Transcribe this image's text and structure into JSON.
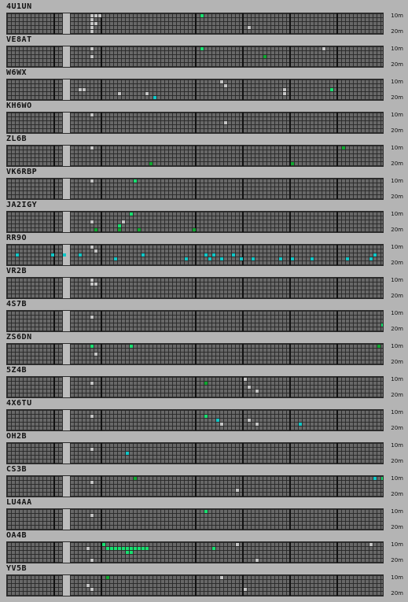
{
  "band_top_label": "10m",
  "band_bottom_label": "20m",
  "colors": {
    "teal": "#10c8c8",
    "green": "#10a830",
    "lime": "#18e070",
    "gray": "#c6c6c6"
  },
  "stations": [
    {
      "call": "4U1UN",
      "cells": [
        [
          21,
          0,
          "gray"
        ],
        [
          22,
          0,
          "gray"
        ],
        [
          23,
          0,
          "gray"
        ],
        [
          21,
          1,
          "gray"
        ],
        [
          21,
          2,
          "gray"
        ],
        [
          22,
          2,
          "gray"
        ],
        [
          21,
          3,
          "gray"
        ],
        [
          21,
          4,
          "gray"
        ],
        [
          49,
          0,
          "lime"
        ],
        [
          61,
          3,
          "gray"
        ]
      ]
    },
    {
      "call": "VE8AT",
      "cells": [
        [
          49,
          0,
          "lime"
        ],
        [
          65,
          2,
          "green"
        ],
        [
          80,
          0,
          "gray"
        ],
        [
          21,
          0,
          "gray"
        ],
        [
          21,
          2,
          "gray"
        ]
      ]
    },
    {
      "call": "W6WX",
      "cells": [
        [
          18,
          2,
          "gray"
        ],
        [
          19,
          2,
          "gray"
        ],
        [
          28,
          3,
          "gray"
        ],
        [
          35,
          3,
          "gray"
        ],
        [
          37,
          4,
          "teal"
        ],
        [
          39,
          5,
          "lime"
        ],
        [
          40,
          5,
          "teal"
        ],
        [
          54,
          0,
          "gray"
        ],
        [
          55,
          1,
          "gray"
        ],
        [
          70,
          2,
          "gray"
        ],
        [
          70,
          3,
          "gray"
        ],
        [
          82,
          2,
          "lime"
        ]
      ]
    },
    {
      "call": "KH6WO",
      "cells": [
        [
          21,
          0,
          "gray"
        ],
        [
          55,
          2,
          "gray"
        ]
      ]
    },
    {
      "call": "ZL6B",
      "cells": [
        [
          21,
          0,
          "gray"
        ],
        [
          36,
          4,
          "green"
        ],
        [
          72,
          4,
          "green"
        ],
        [
          85,
          0,
          "green"
        ]
      ]
    },
    {
      "call": "VK6RBP",
      "cells": [
        [
          32,
          0,
          "lime"
        ],
        [
          21,
          0,
          "gray"
        ]
      ]
    },
    {
      "call": "JA2IGY",
      "cells": [
        [
          31,
          0,
          "lime"
        ],
        [
          28,
          3,
          "lime"
        ],
        [
          28,
          4,
          "green"
        ],
        [
          33,
          4,
          "green"
        ],
        [
          47,
          4,
          "green"
        ],
        [
          29,
          2,
          "gray"
        ],
        [
          21,
          2,
          "gray"
        ],
        [
          22,
          4,
          "green"
        ]
      ]
    },
    {
      "call": "RR9O",
      "cells": [
        [
          21,
          0,
          "gray"
        ],
        [
          2,
          2,
          "teal"
        ],
        [
          11,
          2,
          "teal"
        ],
        [
          14,
          2,
          "teal"
        ],
        [
          18,
          2,
          "teal"
        ],
        [
          22,
          1,
          "gray"
        ],
        [
          27,
          3,
          "teal"
        ],
        [
          34,
          2,
          "teal"
        ],
        [
          45,
          3,
          "teal"
        ],
        [
          50,
          2,
          "teal"
        ],
        [
          51,
          3,
          "teal"
        ],
        [
          52,
          2,
          "teal"
        ],
        [
          54,
          3,
          "teal"
        ],
        [
          57,
          2,
          "teal"
        ],
        [
          59,
          3,
          "teal"
        ],
        [
          62,
          3,
          "teal"
        ],
        [
          69,
          3,
          "teal"
        ],
        [
          72,
          3,
          "teal"
        ],
        [
          77,
          3,
          "teal"
        ],
        [
          86,
          3,
          "teal"
        ],
        [
          92,
          3,
          "teal"
        ],
        [
          93,
          2,
          "teal"
        ]
      ]
    },
    {
      "call": "VR2B",
      "cells": [
        [
          21,
          1,
          "gray"
        ],
        [
          22,
          1,
          "gray"
        ],
        [
          21,
          0,
          "gray"
        ]
      ]
    },
    {
      "call": "4S7B",
      "cells": [
        [
          21,
          1,
          "gray"
        ],
        [
          95,
          3,
          "lime"
        ]
      ]
    },
    {
      "call": "ZS6DN",
      "cells": [
        [
          21,
          0,
          "lime"
        ],
        [
          31,
          0,
          "lime"
        ],
        [
          22,
          2,
          "gray"
        ],
        [
          94,
          0,
          "green"
        ]
      ]
    },
    {
      "call": "5Z4B",
      "cells": [
        [
          50,
          1,
          "green"
        ],
        [
          60,
          0,
          "gray"
        ],
        [
          61,
          2,
          "gray"
        ],
        [
          63,
          3,
          "gray"
        ],
        [
          21,
          1,
          "gray"
        ]
      ]
    },
    {
      "call": "4X6TU",
      "cells": [
        [
          50,
          1,
          "lime"
        ],
        [
          53,
          2,
          "teal"
        ],
        [
          54,
          3,
          "gray"
        ],
        [
          61,
          2,
          "gray"
        ],
        [
          63,
          3,
          "gray"
        ],
        [
          74,
          3,
          "teal"
        ],
        [
          21,
          1,
          "gray"
        ]
      ]
    },
    {
      "call": "OH2B",
      "cells": [
        [
          30,
          2,
          "teal"
        ],
        [
          21,
          1,
          "gray"
        ]
      ]
    },
    {
      "call": "CS3B",
      "cells": [
        [
          32,
          0,
          "green"
        ],
        [
          93,
          0,
          "teal"
        ],
        [
          95,
          0,
          "lime"
        ],
        [
          58,
          3,
          "gray"
        ],
        [
          21,
          1,
          "gray"
        ]
      ]
    },
    {
      "call": "LU4AA",
      "cells": [
        [
          50,
          0,
          "lime"
        ],
        [
          21,
          1,
          "gray"
        ]
      ]
    },
    {
      "call": "OA4B",
      "cells": [
        [
          24,
          0,
          "lime"
        ],
        [
          20,
          1,
          "gray"
        ],
        [
          25,
          1,
          "lime"
        ],
        [
          26,
          1,
          "lime"
        ],
        [
          27,
          1,
          "lime"
        ],
        [
          28,
          1,
          "lime"
        ],
        [
          29,
          1,
          "lime"
        ],
        [
          30,
          1,
          "lime"
        ],
        [
          31,
          1,
          "lime"
        ],
        [
          32,
          1,
          "lime"
        ],
        [
          33,
          1,
          "lime"
        ],
        [
          34,
          1,
          "lime"
        ],
        [
          35,
          1,
          "lime"
        ],
        [
          30,
          2,
          "lime"
        ],
        [
          31,
          2,
          "lime"
        ],
        [
          52,
          1,
          "lime"
        ],
        [
          58,
          0,
          "gray"
        ],
        [
          92,
          0,
          "gray"
        ],
        [
          21,
          4,
          "gray"
        ],
        [
          63,
          4,
          "gray"
        ]
      ]
    },
    {
      "call": "YV5B",
      "cells": [
        [
          25,
          0,
          "green"
        ],
        [
          54,
          0,
          "gray"
        ],
        [
          20,
          2,
          "gray"
        ],
        [
          60,
          3,
          "gray"
        ],
        [
          21,
          3,
          "gray"
        ]
      ]
    }
  ]
}
